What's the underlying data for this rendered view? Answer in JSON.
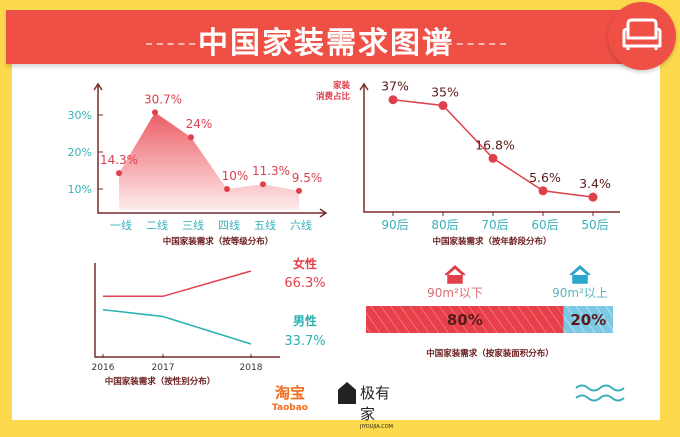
{
  "header": {
    "title": "中国家装需求图谱",
    "icon": "sofa-icon"
  },
  "colors": {
    "background": "#fcd94c",
    "red": "#ee5045",
    "teal": "#3bb0b8",
    "blue": "#6cc3e0"
  },
  "chart_data": [
    {
      "type": "area",
      "categories": [
        "一线",
        "二线",
        "三线",
        "四线",
        "五线",
        "六线"
      ],
      "values": [
        14.3,
        30.7,
        24,
        10,
        11.3,
        9.5
      ],
      "data_labels": [
        "14.3%",
        "30.7%",
        "24%",
        "10%",
        "11.3%",
        "9.5%"
      ],
      "yticks": [
        "10%",
        "20%",
        "30%"
      ],
      "caption": "中国家装需求（按等级分布）"
    },
    {
      "type": "line",
      "categories": [
        "90后",
        "80后",
        "70后",
        "60后",
        "50后"
      ],
      "values": [
        37,
        35,
        16.8,
        5.6,
        3.4
      ],
      "data_labels": [
        "37%",
        "35%",
        "16.8%",
        "5.6%",
        "3.4%"
      ],
      "ylabel": "家装消费占比",
      "caption": "中国家装需求（按年龄段分布）"
    },
    {
      "type": "line",
      "categories": [
        "2016",
        "2017",
        "2018"
      ],
      "series": [
        {
          "name": "女性",
          "values": [
            55,
            55,
            66.3
          ],
          "label": "66.3%"
        },
        {
          "name": "男性",
          "values": [
            49,
            46,
            33.7
          ],
          "label": "33.7%"
        }
      ],
      "caption": "中国家装需求（按性别分布）"
    },
    {
      "type": "bar",
      "stacked": true,
      "categories": [
        "90m²以下",
        "90m²以上"
      ],
      "values": [
        80,
        20
      ],
      "data_labels": [
        "80%",
        "20%"
      ],
      "caption": "中国家装需求（按家装面积分布）"
    }
  ],
  "logos": {
    "taobao": "淘宝",
    "taobao_en": "Taobao",
    "jiyoujia": "极有家",
    "jiyoujia_en": "JIYOUJIA.COM"
  }
}
